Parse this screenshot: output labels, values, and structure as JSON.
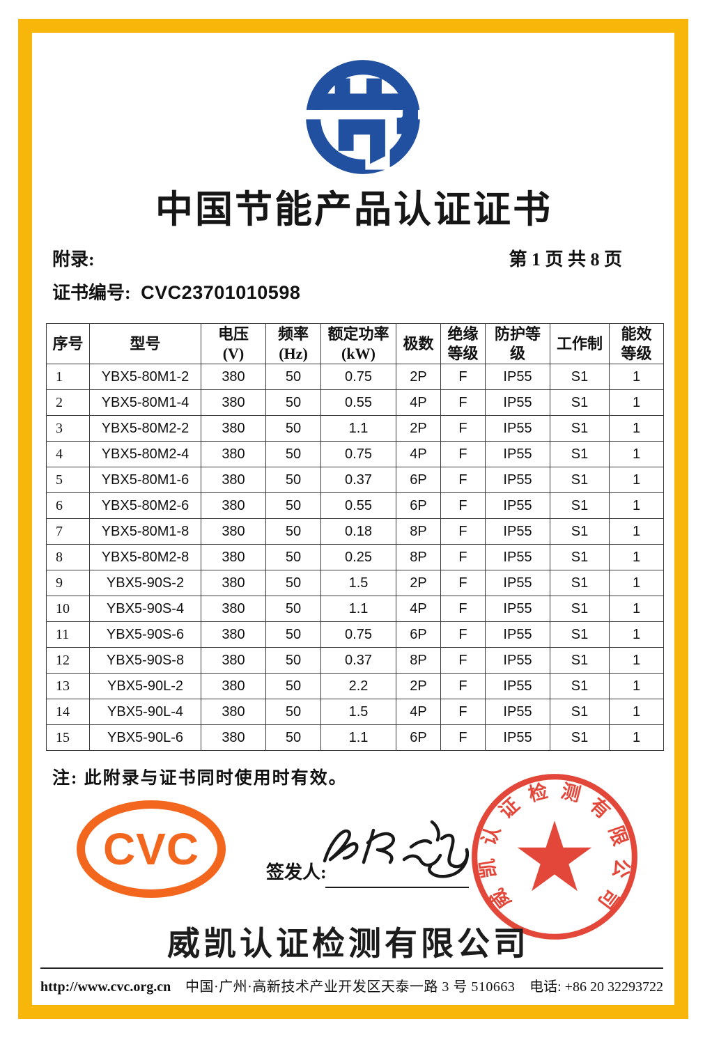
{
  "header": {
    "title": "中国节能产品认证证书",
    "appendix_label": "附录:",
    "page_indicator": "第 1 页 共 8 页",
    "cert_label": "证书编号:",
    "cert_number": "CVC23701010598"
  },
  "table": {
    "headers": [
      [
        "序号"
      ],
      [
        "型号"
      ],
      [
        "电压",
        "(V)"
      ],
      [
        "频率",
        "(Hz)"
      ],
      [
        "额定功率",
        "(kW)"
      ],
      [
        "极数"
      ],
      [
        "绝缘",
        "等级"
      ],
      [
        "防护等",
        "级"
      ],
      [
        "工作制"
      ],
      [
        "能效",
        "等级"
      ]
    ],
    "rows": [
      [
        "1",
        "YBX5-80M1-2",
        "380",
        "50",
        "0.75",
        "2P",
        "F",
        "IP55",
        "S1",
        "1"
      ],
      [
        "2",
        "YBX5-80M1-4",
        "380",
        "50",
        "0.55",
        "4P",
        "F",
        "IP55",
        "S1",
        "1"
      ],
      [
        "3",
        "YBX5-80M2-2",
        "380",
        "50",
        "1.1",
        "2P",
        "F",
        "IP55",
        "S1",
        "1"
      ],
      [
        "4",
        "YBX5-80M2-4",
        "380",
        "50",
        "0.75",
        "4P",
        "F",
        "IP55",
        "S1",
        "1"
      ],
      [
        "5",
        "YBX5-80M1-6",
        "380",
        "50",
        "0.37",
        "6P",
        "F",
        "IP55",
        "S1",
        "1"
      ],
      [
        "6",
        "YBX5-80M2-6",
        "380",
        "50",
        "0.55",
        "6P",
        "F",
        "IP55",
        "S1",
        "1"
      ],
      [
        "7",
        "YBX5-80M1-8",
        "380",
        "50",
        "0.18",
        "8P",
        "F",
        "IP55",
        "S1",
        "1"
      ],
      [
        "8",
        "YBX5-80M2-8",
        "380",
        "50",
        "0.25",
        "8P",
        "F",
        "IP55",
        "S1",
        "1"
      ],
      [
        "9",
        "YBX5-90S-2",
        "380",
        "50",
        "1.5",
        "2P",
        "F",
        "IP55",
        "S1",
        "1"
      ],
      [
        "10",
        "YBX5-90S-4",
        "380",
        "50",
        "1.1",
        "4P",
        "F",
        "IP55",
        "S1",
        "1"
      ],
      [
        "11",
        "YBX5-90S-6",
        "380",
        "50",
        "0.75",
        "6P",
        "F",
        "IP55",
        "S1",
        "1"
      ],
      [
        "12",
        "YBX5-90S-8",
        "380",
        "50",
        "0.37",
        "8P",
        "F",
        "IP55",
        "S1",
        "1"
      ],
      [
        "13",
        "YBX5-90L-2",
        "380",
        "50",
        "2.2",
        "2P",
        "F",
        "IP55",
        "S1",
        "1"
      ],
      [
        "14",
        "YBX5-90L-4",
        "380",
        "50",
        "1.5",
        "4P",
        "F",
        "IP55",
        "S1",
        "1"
      ],
      [
        "15",
        "YBX5-90L-6",
        "380",
        "50",
        "1.1",
        "6P",
        "F",
        "IP55",
        "S1",
        "1"
      ]
    ]
  },
  "note": "注: 此附录与证书同时使用时有效。",
  "signing": {
    "issuer_label": "签发人:",
    "cvc_logo_text": "CVC"
  },
  "stamp": {
    "text": "威凯认证检测有限公司"
  },
  "company_name": "威凯认证检测有限公司",
  "footer": {
    "url": "http://www.cvc.org.cn",
    "address": "中国·广州·高新技术产业开发区天泰一路 3 号 510663",
    "phone": "电话: +86 20 32293722"
  },
  "colors": {
    "frame_yellow": "#F8B60B",
    "logo_blue": "#20509F",
    "cvc_orange": "#F2661E",
    "stamp_red": "#E13A2B"
  }
}
